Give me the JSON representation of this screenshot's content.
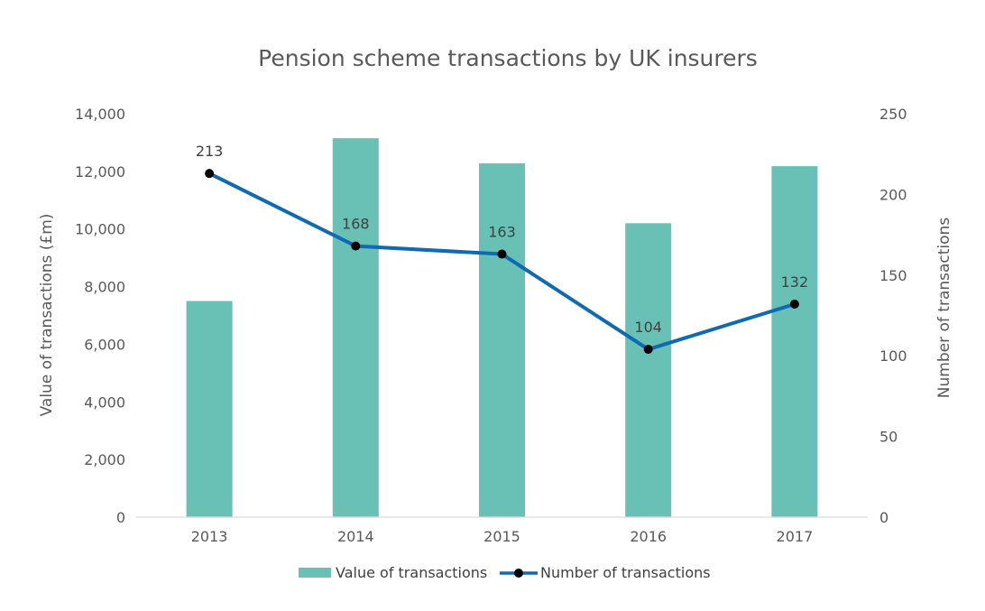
{
  "chart_data": {
    "type": "bar",
    "title": "Pension scheme transactions by UK insurers",
    "categories": [
      "2013",
      "2014",
      "2015",
      "2016",
      "2017"
    ],
    "series": [
      {
        "name": "Value of transactions",
        "type": "bar",
        "axis": "left",
        "values": [
          7500,
          13150,
          12280,
          10200,
          12180
        ],
        "color": "#68C1B4"
      },
      {
        "name": "Number of transactions",
        "type": "line",
        "axis": "right",
        "values": [
          213,
          168,
          163,
          104,
          132
        ],
        "data_labels": [
          "213",
          "168",
          "163",
          "104",
          "132"
        ],
        "color": "#0F6AB4",
        "marker_color": "#000000"
      }
    ],
    "ylabel_left": "Value of transactions (£m)",
    "ylabel_right": "Number of transactions",
    "ylim_left": [
      0,
      14000
    ],
    "ylim_right": [
      0,
      250
    ],
    "yticks_left": [
      "0",
      "2,000",
      "4,000",
      "6,000",
      "8,000",
      "10,000",
      "12,000",
      "14,000"
    ],
    "yticks_right": [
      "0",
      "50",
      "100",
      "150",
      "200",
      "250"
    ],
    "grid": false,
    "legend_position": "bottom"
  }
}
